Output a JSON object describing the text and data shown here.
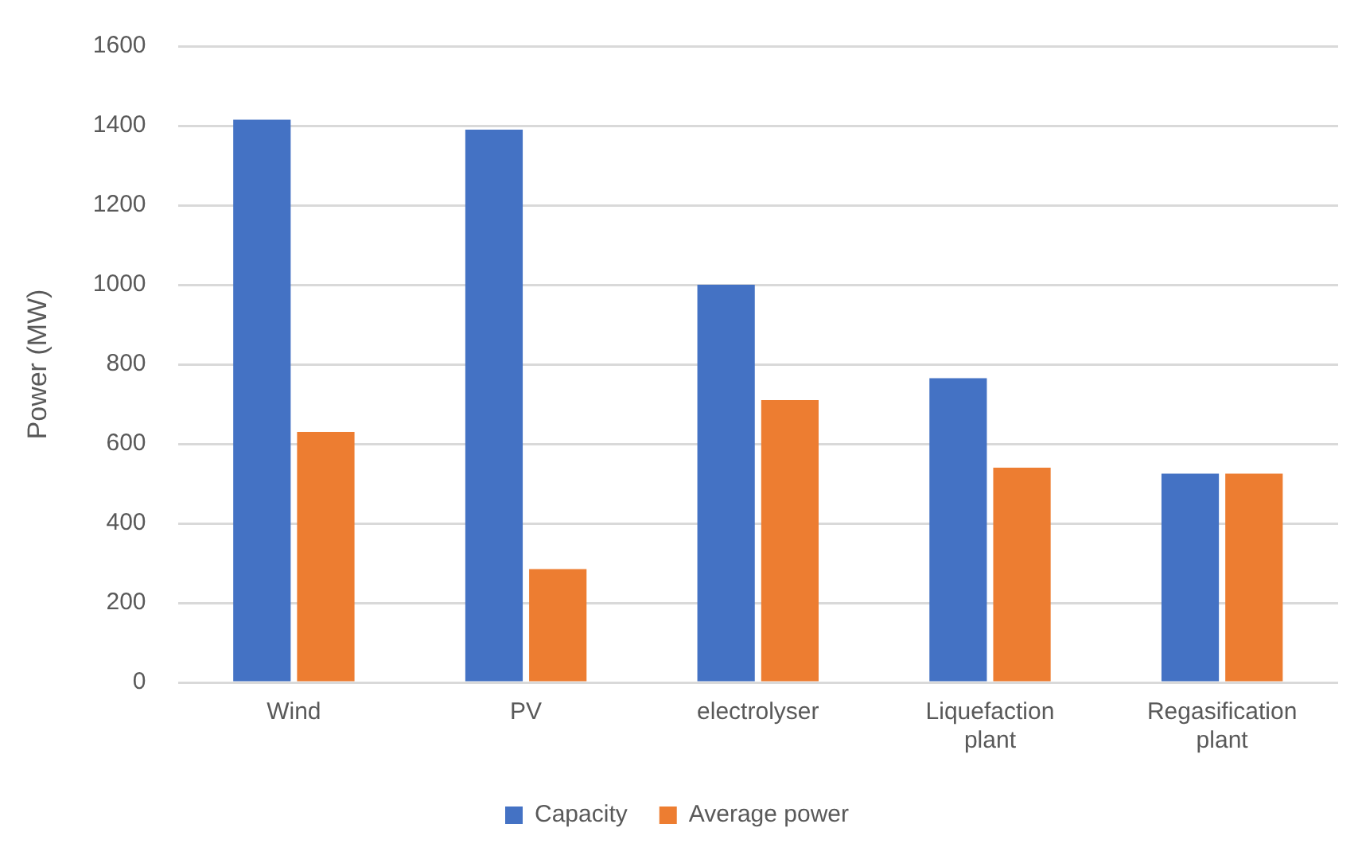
{
  "chart_data": {
    "type": "bar",
    "ylabel": "Power (MW)",
    "categories": [
      "Wind",
      "PV",
      "electrolyser",
      "Liquefaction plant",
      "Regasification plant"
    ],
    "series": [
      {
        "name": "Capacity",
        "color": "#4472c4",
        "values": [
          1415,
          1390,
          1000,
          765,
          525
        ]
      },
      {
        "name": "Average power",
        "color": "#ed7d31",
        "values": [
          630,
          285,
          710,
          540,
          525
        ]
      }
    ],
    "ylim": [
      0,
      1600
    ],
    "yticks": [
      0,
      200,
      400,
      600,
      800,
      1000,
      1200,
      1400,
      1600
    ],
    "grid": "y",
    "legend": "bottom"
  }
}
